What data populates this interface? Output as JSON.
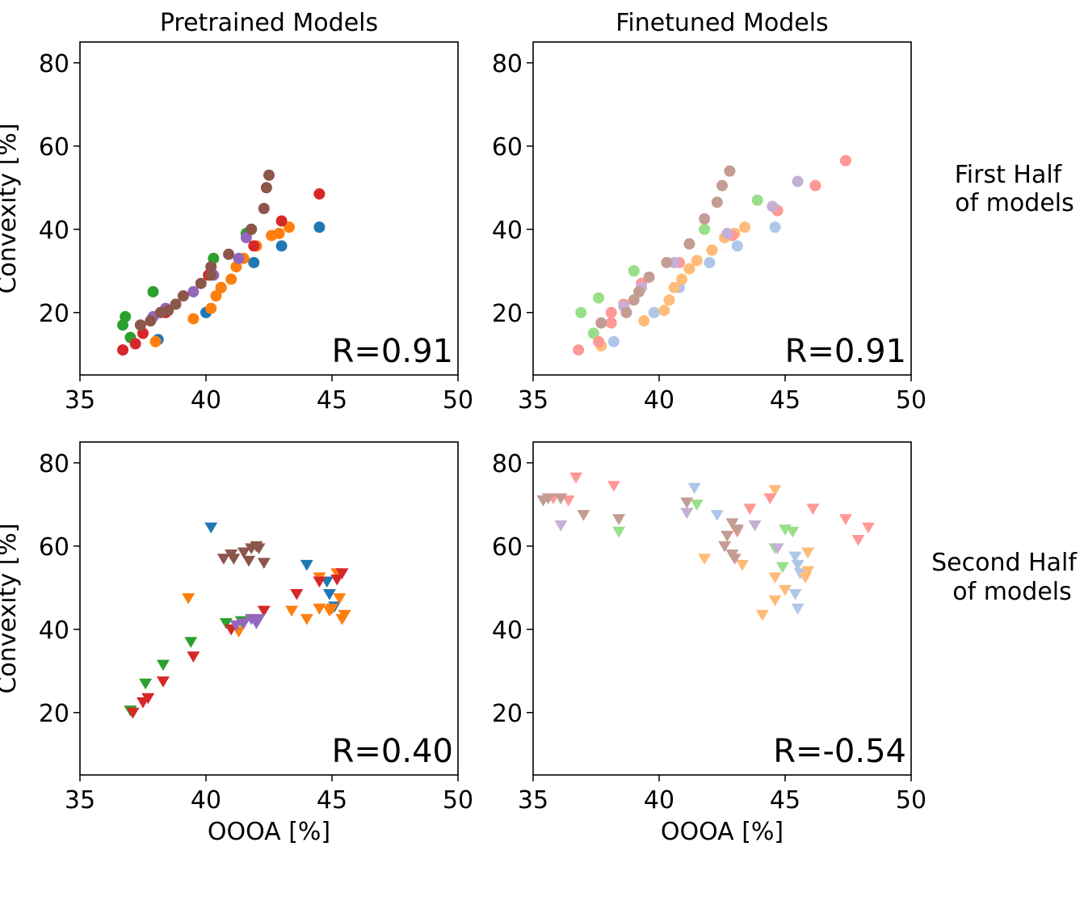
{
  "column_titles": [
    "Pretrained Models",
    "Finetuned Models"
  ],
  "row_labels": [
    {
      "line1": "First Half",
      "line2": "of models"
    },
    {
      "line1": "Second Half",
      "line2": "of models"
    }
  ],
  "colors": {
    "blue": "#1f77b4",
    "orange": "#ff7f0e",
    "green": "#2ca02c",
    "red": "#d62728",
    "purple": "#9467bd",
    "brown": "#8c564b",
    "light_blue": "#aec7e8",
    "light_orange": "#ffbb78",
    "light_green": "#98df8a",
    "light_red": "#ff9896",
    "light_purple": "#c5b0d5",
    "light_brown": "#c49c94"
  },
  "chart_data": [
    {
      "type": "scatter",
      "id": "pretrained-first-half",
      "title": "Pretrained Models",
      "xlabel": "",
      "ylabel": "Convexity [%]",
      "xlim": [
        35,
        50
      ],
      "ylim": [
        5,
        85
      ],
      "xticks": [
        "35",
        "40",
        "45",
        "50"
      ],
      "yticks": [
        "20",
        "40",
        "60",
        "80"
      ],
      "annotation": "R=0.91",
      "marker": "circle",
      "series": [
        {
          "name": "blue",
          "color": "#1f77b4",
          "points": [
            [
              38.1,
              13.5
            ],
            [
              40.0,
              20.0
            ],
            [
              40.6,
              26.0
            ],
            [
              41.9,
              32.0
            ],
            [
              43.0,
              36.0
            ],
            [
              44.5,
              40.5
            ]
          ]
        },
        {
          "name": "orange",
          "color": "#ff7f0e",
          "points": [
            [
              38.0,
              13.0
            ],
            [
              39.5,
              18.5
            ],
            [
              40.2,
              21.0
            ],
            [
              40.4,
              24.0
            ],
            [
              40.6,
              26.0
            ],
            [
              41.0,
              28.0
            ],
            [
              41.2,
              31.0
            ],
            [
              41.5,
              33.0
            ],
            [
              42.0,
              36.0
            ],
            [
              42.6,
              38.5
            ],
            [
              42.9,
              39.0
            ],
            [
              43.3,
              40.5
            ]
          ]
        },
        {
          "name": "green",
          "color": "#2ca02c",
          "points": [
            [
              36.7,
              17.0
            ],
            [
              36.8,
              19.0
            ],
            [
              37.0,
              14.0
            ],
            [
              37.9,
              25.0
            ],
            [
              40.3,
              33.0
            ],
            [
              41.6,
              39.0
            ],
            [
              41.8,
              40.0
            ]
          ]
        },
        {
          "name": "red",
          "color": "#d62728",
          "points": [
            [
              36.7,
              11.0
            ],
            [
              37.2,
              12.5
            ],
            [
              37.5,
              15.0
            ],
            [
              38.4,
              20.0
            ],
            [
              40.1,
              29.0
            ],
            [
              41.9,
              36.0
            ],
            [
              43.0,
              42.0
            ],
            [
              44.5,
              48.5
            ]
          ]
        },
        {
          "name": "purple",
          "color": "#9467bd",
          "points": [
            [
              37.9,
              19.0
            ],
            [
              38.4,
              21.0
            ],
            [
              39.5,
              25.0
            ],
            [
              40.3,
              29.0
            ],
            [
              41.3,
              33.0
            ],
            [
              41.6,
              38.0
            ]
          ]
        },
        {
          "name": "brown",
          "color": "#8c564b",
          "points": [
            [
              37.4,
              17.0
            ],
            [
              37.8,
              18.0
            ],
            [
              38.2,
              20.0
            ],
            [
              38.5,
              20.5
            ],
            [
              38.8,
              22.0
            ],
            [
              39.1,
              24.0
            ],
            [
              39.8,
              27.0
            ],
            [
              40.2,
              29.0
            ],
            [
              40.2,
              31.0
            ],
            [
              40.9,
              34.0
            ],
            [
              41.8,
              40.0
            ],
            [
              42.3,
              45.0
            ],
            [
              42.4,
              50.0
            ],
            [
              42.5,
              53.0
            ]
          ]
        }
      ]
    },
    {
      "type": "scatter",
      "id": "finetuned-first-half",
      "title": "Finetuned Models",
      "xlabel": "",
      "ylabel": "",
      "xlim": [
        35,
        50
      ],
      "ylim": [
        5,
        85
      ],
      "xticks": [
        "35",
        "40",
        "45",
        "50"
      ],
      "yticks": [
        "20",
        "40",
        "60",
        "80"
      ],
      "annotation": "R=0.91",
      "marker": "circle",
      "series": [
        {
          "name": "light blue",
          "color": "#aec7e8",
          "points": [
            [
              38.2,
              13.0
            ],
            [
              39.8,
              20.0
            ],
            [
              40.8,
              26.0
            ],
            [
              42.0,
              32.0
            ],
            [
              43.1,
              36.0
            ],
            [
              44.6,
              40.5
            ]
          ]
        },
        {
          "name": "light orange",
          "color": "#ffbb78",
          "points": [
            [
              37.7,
              12.0
            ],
            [
              39.4,
              18.0
            ],
            [
              40.2,
              20.5
            ],
            [
              40.4,
              23.0
            ],
            [
              40.6,
              26.0
            ],
            [
              40.9,
              28.0
            ],
            [
              41.2,
              30.5
            ],
            [
              41.5,
              32.5
            ],
            [
              42.1,
              35.0
            ],
            [
              42.6,
              38.0
            ],
            [
              43.0,
              39.0
            ],
            [
              43.4,
              40.5
            ]
          ]
        },
        {
          "name": "light green",
          "color": "#98df8a",
          "points": [
            [
              36.9,
              20.0
            ],
            [
              37.4,
              15.0
            ],
            [
              37.6,
              23.5
            ],
            [
              39.0,
              30.0
            ],
            [
              41.8,
              40.0
            ],
            [
              43.9,
              47.0
            ]
          ]
        },
        {
          "name": "light red",
          "color": "#ff9896",
          "points": [
            [
              36.8,
              11.0
            ],
            [
              37.6,
              13.0
            ],
            [
              38.1,
              17.5
            ],
            [
              38.1,
              20.0
            ],
            [
              38.6,
              22.0
            ],
            [
              39.3,
              27.0
            ],
            [
              40.8,
              32.0
            ],
            [
              42.9,
              38.5
            ],
            [
              44.7,
              44.5
            ],
            [
              46.2,
              50.5
            ],
            [
              47.4,
              56.5
            ]
          ]
        },
        {
          "name": "light purple",
          "color": "#c5b0d5",
          "points": [
            [
              38.6,
              21.5
            ],
            [
              39.3,
              26.0
            ],
            [
              40.6,
              32.0
            ],
            [
              42.7,
              39.0
            ],
            [
              44.5,
              45.5
            ],
            [
              45.5,
              51.5
            ]
          ]
        },
        {
          "name": "light brown",
          "color": "#c49c94",
          "points": [
            [
              37.7,
              17.5
            ],
            [
              38.7,
              20.0
            ],
            [
              39.0,
              23.0
            ],
            [
              39.2,
              25.0
            ],
            [
              39.6,
              28.5
            ],
            [
              40.3,
              32.0
            ],
            [
              41.2,
              36.5
            ],
            [
              41.8,
              42.5
            ],
            [
              42.3,
              46.5
            ],
            [
              42.5,
              50.5
            ],
            [
              42.8,
              54.0
            ]
          ]
        }
      ]
    },
    {
      "type": "scatter",
      "id": "pretrained-second-half",
      "title": "",
      "xlabel": "OOOA [%]",
      "ylabel": "Convexity [%]",
      "xlim": [
        35,
        50
      ],
      "ylim": [
        5,
        85
      ],
      "xticks": [
        "35",
        "40",
        "45",
        "50"
      ],
      "yticks": [
        "20",
        "40",
        "60",
        "80"
      ],
      "annotation": "R=0.40",
      "marker": "triangle_down",
      "series": [
        {
          "name": "blue",
          "color": "#1f77b4",
          "points": [
            [
              40.2,
              64.5
            ],
            [
              44.0,
              55.5
            ],
            [
              44.8,
              51.5
            ],
            [
              44.9,
              48.5
            ],
            [
              45.1,
              45.5
            ]
          ]
        },
        {
          "name": "orange",
          "color": "#ff7f0e",
          "points": [
            [
              39.3,
              47.5
            ],
            [
              41.3,
              39.5
            ],
            [
              43.4,
              44.5
            ],
            [
              44.0,
              42.5
            ],
            [
              44.5,
              45.0
            ],
            [
              44.5,
              52.5
            ],
            [
              44.9,
              44.5
            ],
            [
              45.0,
              45.0
            ],
            [
              45.2,
              53.5
            ],
            [
              45.3,
              47.5
            ],
            [
              45.4,
              42.5
            ],
            [
              45.5,
              43.5
            ]
          ]
        },
        {
          "name": "green",
          "color": "#2ca02c",
          "points": [
            [
              37.0,
              20.5
            ],
            [
              37.6,
              27.0
            ],
            [
              38.3,
              31.5
            ],
            [
              39.4,
              37.0
            ],
            [
              40.8,
              41.5
            ],
            [
              41.4,
              42.0
            ]
          ]
        },
        {
          "name": "red",
          "color": "#d62728",
          "points": [
            [
              37.1,
              20.0
            ],
            [
              37.5,
              22.5
            ],
            [
              37.7,
              23.5
            ],
            [
              38.3,
              27.5
            ],
            [
              39.5,
              33.5
            ],
            [
              41.0,
              40.0
            ],
            [
              42.3,
              44.5
            ],
            [
              43.6,
              48.5
            ],
            [
              44.5,
              51.5
            ],
            [
              45.2,
              52.0
            ],
            [
              45.4,
              53.5
            ]
          ]
        },
        {
          "name": "purple",
          "color": "#9467bd",
          "points": [
            [
              41.2,
              41.0
            ],
            [
              41.5,
              41.5
            ],
            [
              41.8,
              42.5
            ],
            [
              42.0,
              41.5
            ],
            [
              42.1,
              42.5
            ]
          ]
        },
        {
          "name": "brown",
          "color": "#8c564b",
          "points": [
            [
              40.7,
              57.0
            ],
            [
              41.0,
              58.0
            ],
            [
              41.1,
              57.0
            ],
            [
              41.5,
              58.5
            ],
            [
              41.7,
              56.5
            ],
            [
              41.8,
              59.5
            ],
            [
              42.0,
              60.0
            ],
            [
              42.1,
              59.5
            ],
            [
              42.3,
              56.0
            ]
          ]
        }
      ]
    },
    {
      "type": "scatter",
      "id": "finetuned-second-half",
      "title": "",
      "xlabel": "OOOA [%]",
      "ylabel": "",
      "xlim": [
        35,
        50
      ],
      "ylim": [
        5,
        85
      ],
      "xticks": [
        "35",
        "40",
        "45",
        "50"
      ],
      "yticks": [
        "20",
        "40",
        "60",
        "80"
      ],
      "annotation": "R=-0.54",
      "marker": "triangle_down",
      "series": [
        {
          "name": "light blue",
          "color": "#aec7e8",
          "points": [
            [
              41.4,
              74.0
            ],
            [
              42.3,
              67.5
            ],
            [
              45.4,
              57.5
            ],
            [
              45.5,
              55.5
            ],
            [
              45.6,
              53.5
            ],
            [
              45.4,
              48.5
            ],
            [
              45.5,
              45.0
            ]
          ]
        },
        {
          "name": "light orange",
          "color": "#ffbb78",
          "points": [
            [
              41.8,
              57.0
            ],
            [
              43.3,
              55.5
            ],
            [
              44.1,
              43.5
            ],
            [
              44.6,
              47.0
            ],
            [
              44.6,
              52.5
            ],
            [
              44.6,
              73.5
            ],
            [
              45.0,
              49.5
            ],
            [
              45.8,
              52.5
            ],
            [
              45.9,
              54.0
            ],
            [
              45.9,
              58.5
            ]
          ]
        },
        {
          "name": "light green",
          "color": "#98df8a",
          "points": [
            [
              38.4,
              63.5
            ],
            [
              41.5,
              70.0
            ],
            [
              44.6,
              59.5
            ],
            [
              44.9,
              55.0
            ],
            [
              45.0,
              64.0
            ],
            [
              45.3,
              63.5
            ]
          ]
        },
        {
          "name": "light red",
          "color": "#ff9896",
          "points": [
            [
              35.8,
              71.5
            ],
            [
              36.4,
              71.0
            ],
            [
              36.7,
              76.5
            ],
            [
              38.2,
              74.5
            ],
            [
              43.1,
              63.5
            ],
            [
              43.6,
              69.0
            ],
            [
              44.4,
              71.5
            ],
            [
              46.1,
              69.0
            ],
            [
              47.4,
              66.5
            ],
            [
              47.9,
              61.5
            ],
            [
              48.3,
              64.5
            ]
          ]
        },
        {
          "name": "light purple",
          "color": "#c5b0d5",
          "points": [
            [
              36.1,
              65.0
            ],
            [
              41.1,
              68.0
            ],
            [
              43.8,
              65.0
            ],
            [
              44.7,
              59.5
            ]
          ]
        },
        {
          "name": "light brown",
          "color": "#c49c94",
          "points": [
            [
              35.4,
              71.0
            ],
            [
              35.6,
              71.5
            ],
            [
              36.1,
              71.5
            ],
            [
              37.0,
              67.5
            ],
            [
              38.4,
              66.5
            ],
            [
              41.1,
              70.5
            ],
            [
              42.6,
              60.0
            ],
            [
              42.7,
              62.5
            ],
            [
              42.9,
              58.0
            ],
            [
              42.9,
              65.5
            ],
            [
              43.0,
              57.0
            ],
            [
              43.1,
              64.0
            ]
          ]
        }
      ]
    }
  ]
}
